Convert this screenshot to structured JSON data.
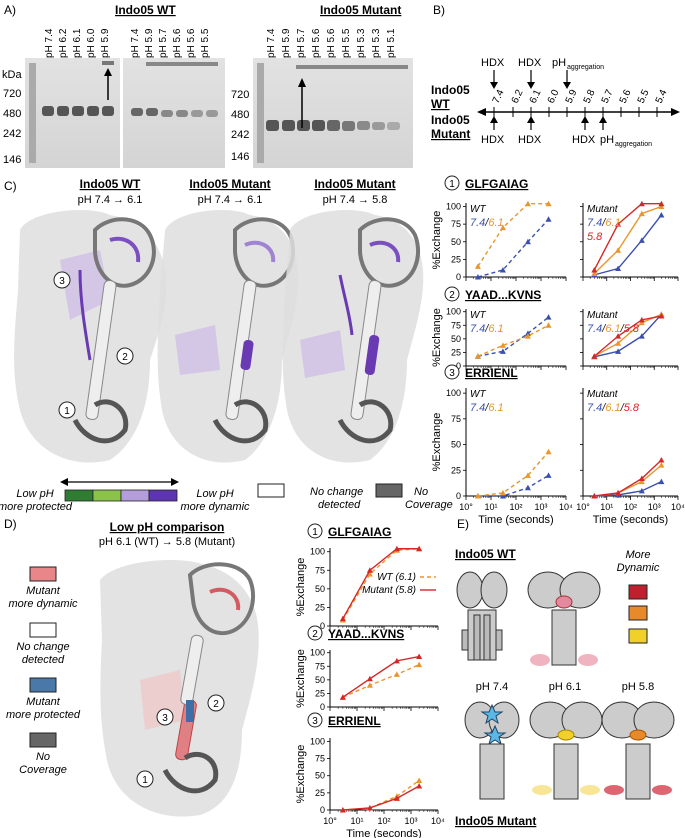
{
  "panels": {
    "A": {
      "letter": "A)",
      "wt_title": "Indo05 WT",
      "mut_title": "Indo05 Mutant",
      "kda_label": "kDa",
      "markers_left": [
        "720",
        "480",
        "242",
        "146"
      ],
      "markers_right": [
        "720",
        "480",
        "242",
        "146"
      ],
      "wt_lanes_1": [
        "pH 7.4",
        "pH 6.2",
        "pH 6.1",
        "pH 6.0",
        "pH 5.9"
      ],
      "wt_lanes_2": [
        "pH 7.4",
        "pH 5.9",
        "pH 5.7",
        "pH 5.6",
        "pH 5.6",
        "pH 5.5"
      ],
      "mut_lanes": [
        "pH 7.4",
        "pH 5.9",
        "pH 5.7",
        "pH 5.6",
        "pH 5.6",
        "pH 5.5",
        "pH 5.3",
        "pH 5.3",
        "pH 5.1"
      ]
    },
    "B": {
      "letter": "B)",
      "wt_label_1": "Indo05",
      "wt_label_2": "WT",
      "mut_label_1": "Indo05",
      "mut_label_2": "Mutant",
      "hdx": "HDX",
      "ph_agg_main": "pH",
      "ph_agg_sub": "aggregation",
      "ph_values": [
        "7.4",
        "6.2",
        "6.1",
        "6.0",
        "5.9",
        "5.8",
        "5.7",
        "5.6",
        "5.5",
        "5.4"
      ]
    },
    "C": {
      "letter": "C)",
      "structs": [
        {
          "title": "Indo05 WT",
          "sub": "pH 7.4 → 6.1"
        },
        {
          "title": "Indo05 Mutant",
          "sub": "pH 7.4 → 6.1"
        },
        {
          "title": "Indo05 Mutant",
          "sub": "pH 7.4 → 5.8"
        }
      ],
      "markers": [
        "1",
        "2",
        "3"
      ],
      "legend": {
        "left_1": "Low pH",
        "left_2": "more protected",
        "right_1": "Low pH",
        "right_2": "more dynamic",
        "nochange_1": "No change",
        "nochange_2": "detected",
        "nocov_1": "No",
        "nocov_2": "Coverage"
      },
      "colors": {
        "protected_dark": "#2e7d32",
        "protected_light": "#8bc34a",
        "dynamic_light": "#b39ddb",
        "dynamic_dark": "#5e35b1",
        "nocov": "#666666"
      }
    },
    "D": {
      "letter": "D)",
      "title": "Low pH comparison",
      "sub": "pH 6.1 (WT) → 5.8 (Mutant)",
      "legend": [
        {
          "l1": "Mutant",
          "l2": "more dynamic",
          "color": "#e8868a"
        },
        {
          "l1": "No change",
          "l2": "detected",
          "color": "#ffffff"
        },
        {
          "l1": "Mutant",
          "l2": "more protected",
          "color": "#4a78a8"
        },
        {
          "l1": "No",
          "l2": "Coverage",
          "color": "#666666"
        }
      ]
    },
    "E": {
      "letter": "E)",
      "wt_title": "Indo05 WT",
      "mut_title": "Indo05 Mutant",
      "more_1": "More",
      "more_2": "Dynamic",
      "ph_labels": [
        "pH 7.4",
        "pH 6.1",
        "pH 5.8"
      ],
      "dyn_colors": [
        "#c0202e",
        "#e88a2a",
        "#f2d02a"
      ]
    }
  },
  "chart_data": [
    {
      "id": "C1-WT",
      "type": "line",
      "peptide": "GLFGAIAG",
      "condition": "WT",
      "ylabel": "%Exchange",
      "ylim": [
        0,
        100
      ],
      "xscale": "log",
      "series": [
        {
          "name": "7.4",
          "color": "#3a4fb0",
          "x": [
            3,
            30,
            300,
            2000
          ],
          "y": [
            0,
            10,
            50,
            82
          ]
        },
        {
          "name": "6.1",
          "color": "#e8962a",
          "x": [
            3,
            30,
            300,
            2000
          ],
          "y": [
            15,
            70,
            104,
            104
          ]
        }
      ]
    },
    {
      "id": "C1-Mut",
      "type": "line",
      "peptide": "GLFGAIAG",
      "condition": "Mutant",
      "ylabel": "%Exchange",
      "ylim": [
        0,
        100
      ],
      "xscale": "log",
      "series": [
        {
          "name": "7.4",
          "color": "#3a4fb0",
          "x": [
            3,
            30,
            300,
            2000
          ],
          "y": [
            3,
            12,
            52,
            88
          ]
        },
        {
          "name": "6.1",
          "color": "#e8962a",
          "x": [
            3,
            30,
            300,
            2000
          ],
          "y": [
            5,
            38,
            90,
            100
          ]
        },
        {
          "name": "5.8",
          "color": "#d62728",
          "x": [
            3,
            30,
            300,
            2000
          ],
          "y": [
            10,
            75,
            104,
            104
          ]
        }
      ]
    },
    {
      "id": "C2-WT",
      "type": "line",
      "peptide": "YAAD...KVNS",
      "condition": "WT",
      "ylabel": "%Exchange",
      "ylim": [
        0,
        100
      ],
      "xscale": "log",
      "series": [
        {
          "name": "7.4",
          "color": "#3a4fb0",
          "x": [
            3,
            30,
            300,
            2000
          ],
          "y": [
            18,
            27,
            60,
            90
          ]
        },
        {
          "name": "6.1",
          "color": "#e8962a",
          "x": [
            3,
            30,
            300,
            2000
          ],
          "y": [
            18,
            38,
            55,
            75
          ]
        }
      ]
    },
    {
      "id": "C2-Mut",
      "type": "line",
      "peptide": "YAAD...KVNS",
      "condition": "Mutant",
      "ylabel": "%Exchange",
      "ylim": [
        0,
        100
      ],
      "xscale": "log",
      "series": [
        {
          "name": "7.4",
          "color": "#3a4fb0",
          "x": [
            3,
            30,
            300,
            2000
          ],
          "y": [
            17,
            27,
            55,
            95
          ]
        },
        {
          "name": "6.1",
          "color": "#e8962a",
          "x": [
            3,
            30,
            300,
            2000
          ],
          "y": [
            18,
            42,
            80,
            95
          ]
        },
        {
          "name": "5.8",
          "color": "#d62728",
          "x": [
            3,
            30,
            300,
            2000
          ],
          "y": [
            18,
            55,
            85,
            92
          ]
        }
      ]
    },
    {
      "id": "C3-WT",
      "type": "line",
      "peptide": "ERRIENL",
      "condition": "WT",
      "ylabel": "%Exchange",
      "xlabel": "Time (seconds)",
      "ylim": [
        0,
        100
      ],
      "xscale": "log",
      "xticks": [
        "10°",
        "10¹",
        "10²",
        "10³",
        "10⁴"
      ],
      "series": [
        {
          "name": "7.4",
          "color": "#3a4fb0",
          "x": [
            3,
            30,
            300,
            2000
          ],
          "y": [
            0,
            0,
            8,
            20
          ]
        },
        {
          "name": "6.1",
          "color": "#e8962a",
          "x": [
            3,
            30,
            300,
            2000
          ],
          "y": [
            0,
            3,
            20,
            43
          ]
        }
      ]
    },
    {
      "id": "C3-Mut",
      "type": "line",
      "peptide": "ERRIENL",
      "condition": "Mutant",
      "ylabel": "%Exchange",
      "xlabel": "Time (seconds)",
      "ylim": [
        0,
        100
      ],
      "xscale": "log",
      "xticks": [
        "10°",
        "10¹",
        "10²",
        "10³",
        "10⁴"
      ],
      "series": [
        {
          "name": "7.4",
          "color": "#3a4fb0",
          "x": [
            3,
            30,
            300,
            2000
          ],
          "y": [
            0,
            1,
            5,
            14
          ]
        },
        {
          "name": "6.1",
          "color": "#e8962a",
          "x": [
            3,
            30,
            300,
            2000
          ],
          "y": [
            0,
            3,
            14,
            30
          ]
        },
        {
          "name": "5.8",
          "color": "#d62728",
          "x": [
            3,
            30,
            300,
            2000
          ],
          "y": [
            0,
            3,
            17,
            35
          ]
        }
      ]
    },
    {
      "id": "D1",
      "type": "line",
      "peptide": "GLFGAIAG",
      "ylabel": "%Exchange",
      "ylim": [
        0,
        100
      ],
      "xscale": "log",
      "series": [
        {
          "name": "WT (6.1)",
          "color": "#e8962a",
          "x": [
            3,
            30,
            300,
            2000
          ],
          "y": [
            8,
            70,
            102,
            104
          ]
        },
        {
          "name": "Mutant (5.8)",
          "color": "#d62728",
          "x": [
            3,
            30,
            300,
            2000
          ],
          "y": [
            10,
            75,
            104,
            104
          ]
        }
      ]
    },
    {
      "id": "D2",
      "type": "line",
      "peptide": "YAAD...KVNS",
      "ylabel": "%Exchange",
      "ylim": [
        0,
        100
      ],
      "xscale": "log",
      "series": [
        {
          "name": "WT (6.1)",
          "color": "#e8962a",
          "x": [
            3,
            30,
            300,
            2000
          ],
          "y": [
            18,
            40,
            60,
            78
          ]
        },
        {
          "name": "Mutant (5.8)",
          "color": "#d62728",
          "x": [
            3,
            30,
            300,
            2000
          ],
          "y": [
            18,
            52,
            85,
            93
          ]
        }
      ]
    },
    {
      "id": "D3",
      "type": "line",
      "peptide": "ERRIENL",
      "ylabel": "%Exchange",
      "xlabel": "Time (seconds)",
      "ylim": [
        0,
        100
      ],
      "xscale": "log",
      "xticks": [
        "10°",
        "10¹",
        "10²",
        "10³",
        "10⁴"
      ],
      "series": [
        {
          "name": "WT (6.1)",
          "color": "#e8962a",
          "x": [
            3,
            30,
            300,
            2000
          ],
          "y": [
            0,
            3,
            20,
            43
          ]
        },
        {
          "name": "Mutant (5.8)",
          "color": "#d62728",
          "x": [
            3,
            30,
            300,
            2000
          ],
          "y": [
            0,
            3,
            17,
            35
          ]
        }
      ]
    }
  ]
}
